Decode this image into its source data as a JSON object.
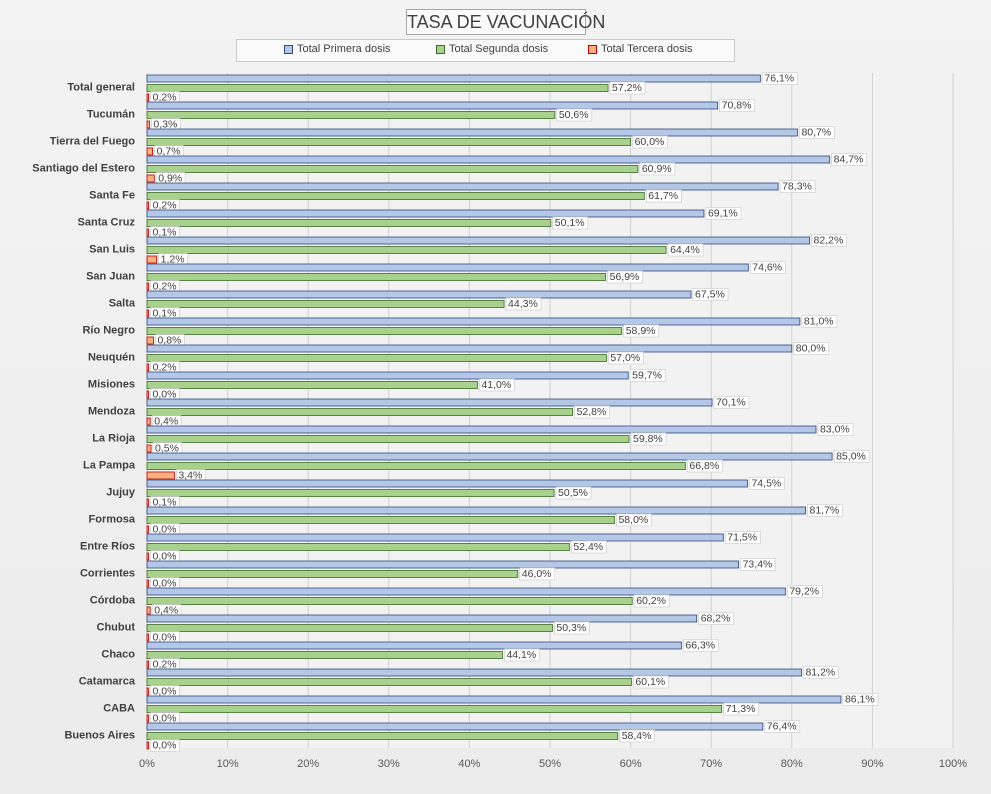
{
  "chart_data": {
    "type": "bar",
    "orientation": "horizontal",
    "title": "TASA DE VACUNACIÓN",
    "categories": [
      "Total general",
      "Tucumán",
      "Tierra del Fuego",
      "Santiago del Estero",
      "Santa Fe",
      "Santa Cruz",
      "San Luis",
      "San Juan",
      "Salta",
      "Río Negro",
      "Neuquén",
      "Misiones",
      "Mendoza",
      "La Rioja",
      "La Pampa",
      "Jujuy",
      "Formosa",
      "Entre Ríos",
      "Corrientes",
      "Córdoba",
      "Chubut",
      "Chaco",
      "Catamarca",
      "CABA",
      "Buenos Aires"
    ],
    "series": [
      {
        "name": "Total Primera dosis",
        "color": "#b4c7e7",
        "stroke": "#2f4878",
        "values": [
          76.1,
          70.8,
          80.7,
          84.7,
          78.3,
          69.1,
          82.2,
          74.6,
          67.5,
          81.0,
          80.0,
          59.7,
          70.1,
          83.0,
          85.0,
          74.5,
          81.7,
          71.5,
          73.4,
          79.2,
          68.2,
          66.3,
          81.2,
          86.1,
          76.4
        ],
        "labels": [
          "76,1%",
          "70,8%",
          "80,7%",
          "84,7%",
          "78,3%",
          "69,1%",
          "82,2%",
          "74,6%",
          "67,5%",
          "81,0%",
          "80,0%",
          "59,7%",
          "70,1%",
          "83,0%",
          "85,0%",
          "74,5%",
          "81,7%",
          "71,5%",
          "73,4%",
          "79,2%",
          "68,2%",
          "66,3%",
          "81,2%",
          "86,1%",
          "76,4%"
        ]
      },
      {
        "name": "Total Segunda dosis",
        "color": "#a9d18e",
        "stroke": "#3c6b28",
        "values": [
          57.2,
          50.6,
          60.0,
          60.9,
          61.7,
          50.1,
          64.4,
          56.9,
          44.3,
          58.9,
          57.0,
          41.0,
          52.8,
          59.8,
          66.8,
          50.5,
          58.0,
          52.4,
          46.0,
          60.2,
          50.3,
          44.1,
          60.1,
          71.3,
          58.4
        ],
        "labels": [
          "57,2%",
          "50,6%",
          "60,0%",
          "60,9%",
          "61,7%",
          "50,1%",
          "64,4%",
          "56,9%",
          "44,3%",
          "58,9%",
          "57,0%",
          "41,0%",
          "52,8%",
          "59,8%",
          "66,8%",
          "50,5%",
          "58,0%",
          "52,4%",
          "46,0%",
          "60,2%",
          "50,3%",
          "44,1%",
          "60,1%",
          "71,3%",
          "58,4%"
        ]
      },
      {
        "name": "Total Tercera dosis",
        "color": "#f4b183",
        "stroke": "#c00000",
        "values": [
          0.2,
          0.3,
          0.7,
          0.9,
          0.2,
          0.1,
          1.2,
          0.2,
          0.1,
          0.8,
          0.2,
          0.0,
          0.4,
          0.5,
          3.4,
          0.1,
          0.0,
          0.0,
          0.0,
          0.4,
          0.0,
          0.2,
          0.0,
          0.0,
          0.0
        ],
        "labels": [
          "0,2%",
          "0,3%",
          "0,7%",
          "0,9%",
          "0,2%",
          "0,1%",
          "1,2%",
          "0,2%",
          "0,1%",
          "0,8%",
          "0,2%",
          "0,0%",
          "0,4%",
          "0,5%",
          "3,4%",
          "0,1%",
          "0,0%",
          "0,0%",
          "0,0%",
          "0,4%",
          "0,0%",
          "0,2%",
          "0,0%",
          "0,0%",
          "0,0%"
        ]
      }
    ],
    "xlim": [
      0,
      100
    ],
    "xticks": [
      0,
      10,
      20,
      30,
      40,
      50,
      60,
      70,
      80,
      90,
      100
    ],
    "xtick_labels": [
      "0%",
      "10%",
      "20%",
      "30%",
      "40%",
      "50%",
      "60%",
      "70%",
      "80%",
      "90%",
      "100%"
    ],
    "grid": true,
    "legend_position": "top"
  }
}
